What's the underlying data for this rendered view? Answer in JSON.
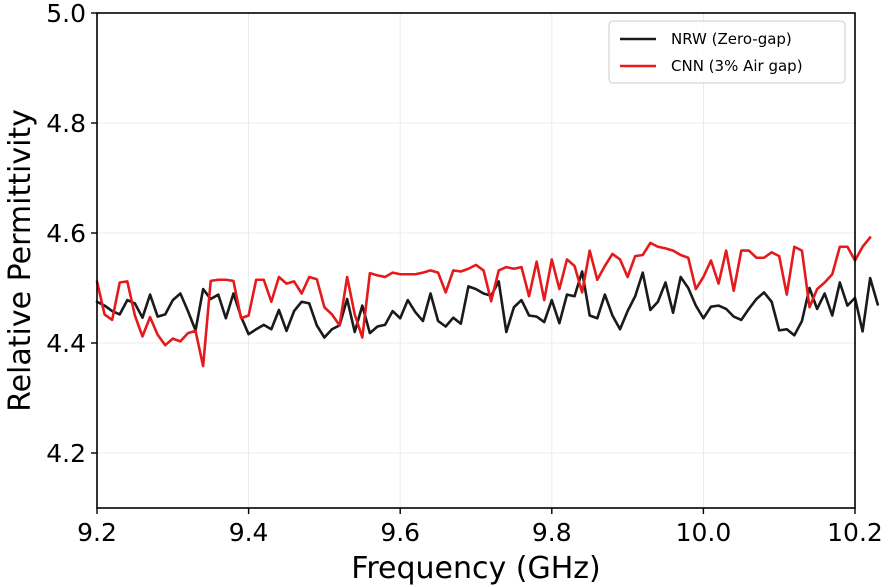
{
  "chart_data": {
    "type": "line",
    "title": "",
    "xlabel": "Frequency (GHz)",
    "ylabel": "Relative Permittivity",
    "xlim": [
      9.2,
      10.2
    ],
    "ylim": [
      4.1,
      5.0
    ],
    "xticks": [
      9.2,
      9.4,
      9.6,
      9.8,
      10.0,
      10.2
    ],
    "xtick_labels": [
      "9.2",
      "9.4",
      "9.6",
      "9.8",
      "10.0",
      "10.2"
    ],
    "yticks": [
      4.2,
      4.4,
      4.6,
      4.8,
      5.0
    ],
    "ytick_labels": [
      "4.2",
      "4.4",
      "4.6",
      "4.8",
      "5.0"
    ],
    "grid": true,
    "legend_position": "top-right",
    "x_start": 9.2,
    "x_step": 0.01,
    "series": [
      {
        "name": "NRW (Zero-gap)",
        "color": "#1a1a1a",
        "values": [
          4.475,
          4.468,
          4.458,
          4.452,
          4.478,
          4.472,
          4.446,
          4.488,
          4.448,
          4.452,
          4.478,
          4.49,
          4.458,
          4.423,
          4.498,
          4.48,
          4.488,
          4.445,
          4.49,
          4.448,
          4.416,
          4.425,
          4.433,
          4.425,
          4.46,
          4.422,
          4.458,
          4.475,
          4.472,
          4.432,
          4.41,
          4.425,
          4.432,
          4.48,
          4.42,
          4.468,
          4.418,
          4.43,
          4.433,
          4.458,
          4.445,
          4.478,
          4.456,
          4.44,
          4.49,
          4.44,
          4.43,
          4.446,
          4.435,
          4.503,
          4.498,
          4.49,
          4.486,
          4.512,
          4.42,
          4.465,
          4.478,
          4.45,
          4.448,
          4.438,
          4.478,
          4.436,
          4.488,
          4.485,
          4.53,
          4.45,
          4.445,
          4.488,
          4.45,
          4.425,
          4.458,
          4.485,
          4.528,
          4.46,
          4.475,
          4.51,
          4.455,
          4.52,
          4.5,
          4.468,
          4.445,
          4.466,
          4.468,
          4.462,
          4.448,
          4.442,
          4.462,
          4.48,
          4.492,
          4.475,
          4.423,
          4.425,
          4.414,
          4.44,
          4.5,
          4.462,
          4.49,
          4.45,
          4.51,
          4.468,
          4.482,
          4.421,
          4.518,
          4.47
        ]
      },
      {
        "name": "CNN (3% Air gap)",
        "color": "#e41a1c",
        "values": [
          4.512,
          4.452,
          4.442,
          4.51,
          4.512,
          4.45,
          4.412,
          4.447,
          4.415,
          4.396,
          4.408,
          4.403,
          4.418,
          4.422,
          4.358,
          4.513,
          4.515,
          4.515,
          4.513,
          4.445,
          4.45,
          4.515,
          4.515,
          4.475,
          4.52,
          4.508,
          4.512,
          4.49,
          4.52,
          4.516,
          4.465,
          4.452,
          4.432,
          4.52,
          4.452,
          4.41,
          4.527,
          4.523,
          4.52,
          4.528,
          4.525,
          4.525,
          4.525,
          4.528,
          4.532,
          4.528,
          4.492,
          4.532,
          4.53,
          4.535,
          4.542,
          4.532,
          4.476,
          4.532,
          4.538,
          4.535,
          4.538,
          4.485,
          4.548,
          4.478,
          4.552,
          4.498,
          4.552,
          4.54,
          4.492,
          4.568,
          4.515,
          4.54,
          4.562,
          4.552,
          4.52,
          4.558,
          4.56,
          4.582,
          4.575,
          4.572,
          4.568,
          4.56,
          4.555,
          4.498,
          4.52,
          4.55,
          4.508,
          4.568,
          4.495,
          4.568,
          4.568,
          4.555,
          4.555,
          4.565,
          4.558,
          4.488,
          4.575,
          4.568,
          4.465,
          4.498,
          4.51,
          4.525,
          4.575,
          4.575,
          4.55,
          4.575,
          4.592
        ]
      }
    ]
  }
}
